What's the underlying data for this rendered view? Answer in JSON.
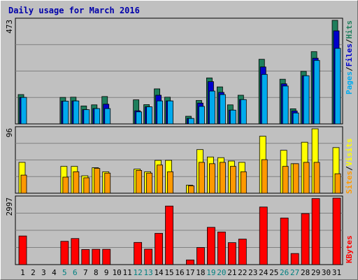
{
  "title": "Daily usage for March 2016",
  "colors": {
    "hits": "#1e7e5c",
    "files": "#0000cc",
    "pages": "#00aaee",
    "visits": "#ffff00",
    "sites": "#ff9900",
    "kbytes": "#ff0000",
    "weekend_label": "#008080",
    "slash": "#000000",
    "title": "#0000aa"
  },
  "panels": {
    "top": {
      "max_label": "473",
      "labels": {
        "pages": "Pages",
        "files": "Files",
        "hits": "Hits",
        "sep": "/"
      }
    },
    "mid": {
      "max_label": "96",
      "labels": {
        "sites": "Sites",
        "visits": "Visits",
        "sep": "/"
      }
    },
    "bot": {
      "max_label": "2997",
      "labels": {
        "kbytes": "KBytes"
      }
    }
  },
  "chart_data": {
    "type": "bar",
    "title": "Daily usage for March 2016",
    "categories": [
      "1",
      "2",
      "3",
      "4",
      "5",
      "6",
      "7",
      "8",
      "9",
      "10",
      "11",
      "12",
      "13",
      "14",
      "15",
      "16",
      "17",
      "18",
      "19",
      "20",
      "21",
      "22",
      "23",
      "24",
      "25",
      "26",
      "27",
      "28",
      "29",
      "30",
      "31"
    ],
    "weekend_days": [
      "5",
      "6",
      "12",
      "13",
      "19",
      "20",
      "26",
      "27"
    ],
    "series": [
      {
        "name": "Hits",
        "panel": "top",
        "ymax": 473,
        "values": [
          134,
          0,
          0,
          0,
          121,
          122,
          82,
          87,
          125,
          0,
          0,
          110,
          88,
          160,
          122,
          0,
          35,
          107,
          210,
          169,
          87,
          131,
          0,
          295,
          0,
          204,
          69,
          240,
          330,
          0,
          473
        ]
      },
      {
        "name": "Files",
        "panel": "top",
        "ymax": 473,
        "values": [
          121,
          0,
          0,
          0,
          104,
          105,
          65,
          70,
          90,
          0,
          0,
          60,
          78,
          131,
          105,
          0,
          25,
          95,
          193,
          144,
          63,
          111,
          0,
          260,
          0,
          183,
          59,
          220,
          300,
          0,
          425
        ]
      },
      {
        "name": "Pages",
        "panel": "top",
        "ymax": 473,
        "values": [
          121,
          0,
          0,
          0,
          104,
          105,
          65,
          70,
          70,
          0,
          0,
          55,
          78,
          105,
          105,
          0,
          25,
          80,
          150,
          134,
          63,
          111,
          0,
          226,
          0,
          173,
          50,
          220,
          290,
          0,
          345
        ]
      },
      {
        "name": "Visits",
        "panel": "mid",
        "ymax": 96,
        "values": [
          46,
          0,
          0,
          0,
          40,
          40,
          26,
          38,
          32,
          0,
          0,
          36,
          32,
          49,
          49,
          0,
          12,
          65,
          54,
          53,
          48,
          46,
          0,
          85,
          0,
          64,
          44,
          76,
          96,
          0,
          68
        ]
      },
      {
        "name": "Sites",
        "panel": "mid",
        "ymax": 96,
        "values": [
          27,
          0,
          0,
          0,
          24,
          32,
          23,
          37,
          30,
          0,
          0,
          34,
          30,
          42,
          32,
          0,
          11,
          46,
          44,
          46,
          40,
          32,
          0,
          50,
          0,
          40,
          44,
          46,
          46,
          0,
          29
        ]
      },
      {
        "name": "KBytes",
        "panel": "bot",
        "ymax": 2997,
        "values": [
          1290,
          0,
          0,
          0,
          1050,
          1175,
          680,
          690,
          690,
          0,
          0,
          1000,
          695,
          1410,
          2640,
          0,
          210,
          770,
          1680,
          1470,
          990,
          1150,
          0,
          2595,
          0,
          2100,
          500,
          2300,
          2976,
          0,
          2997
        ]
      }
    ]
  }
}
